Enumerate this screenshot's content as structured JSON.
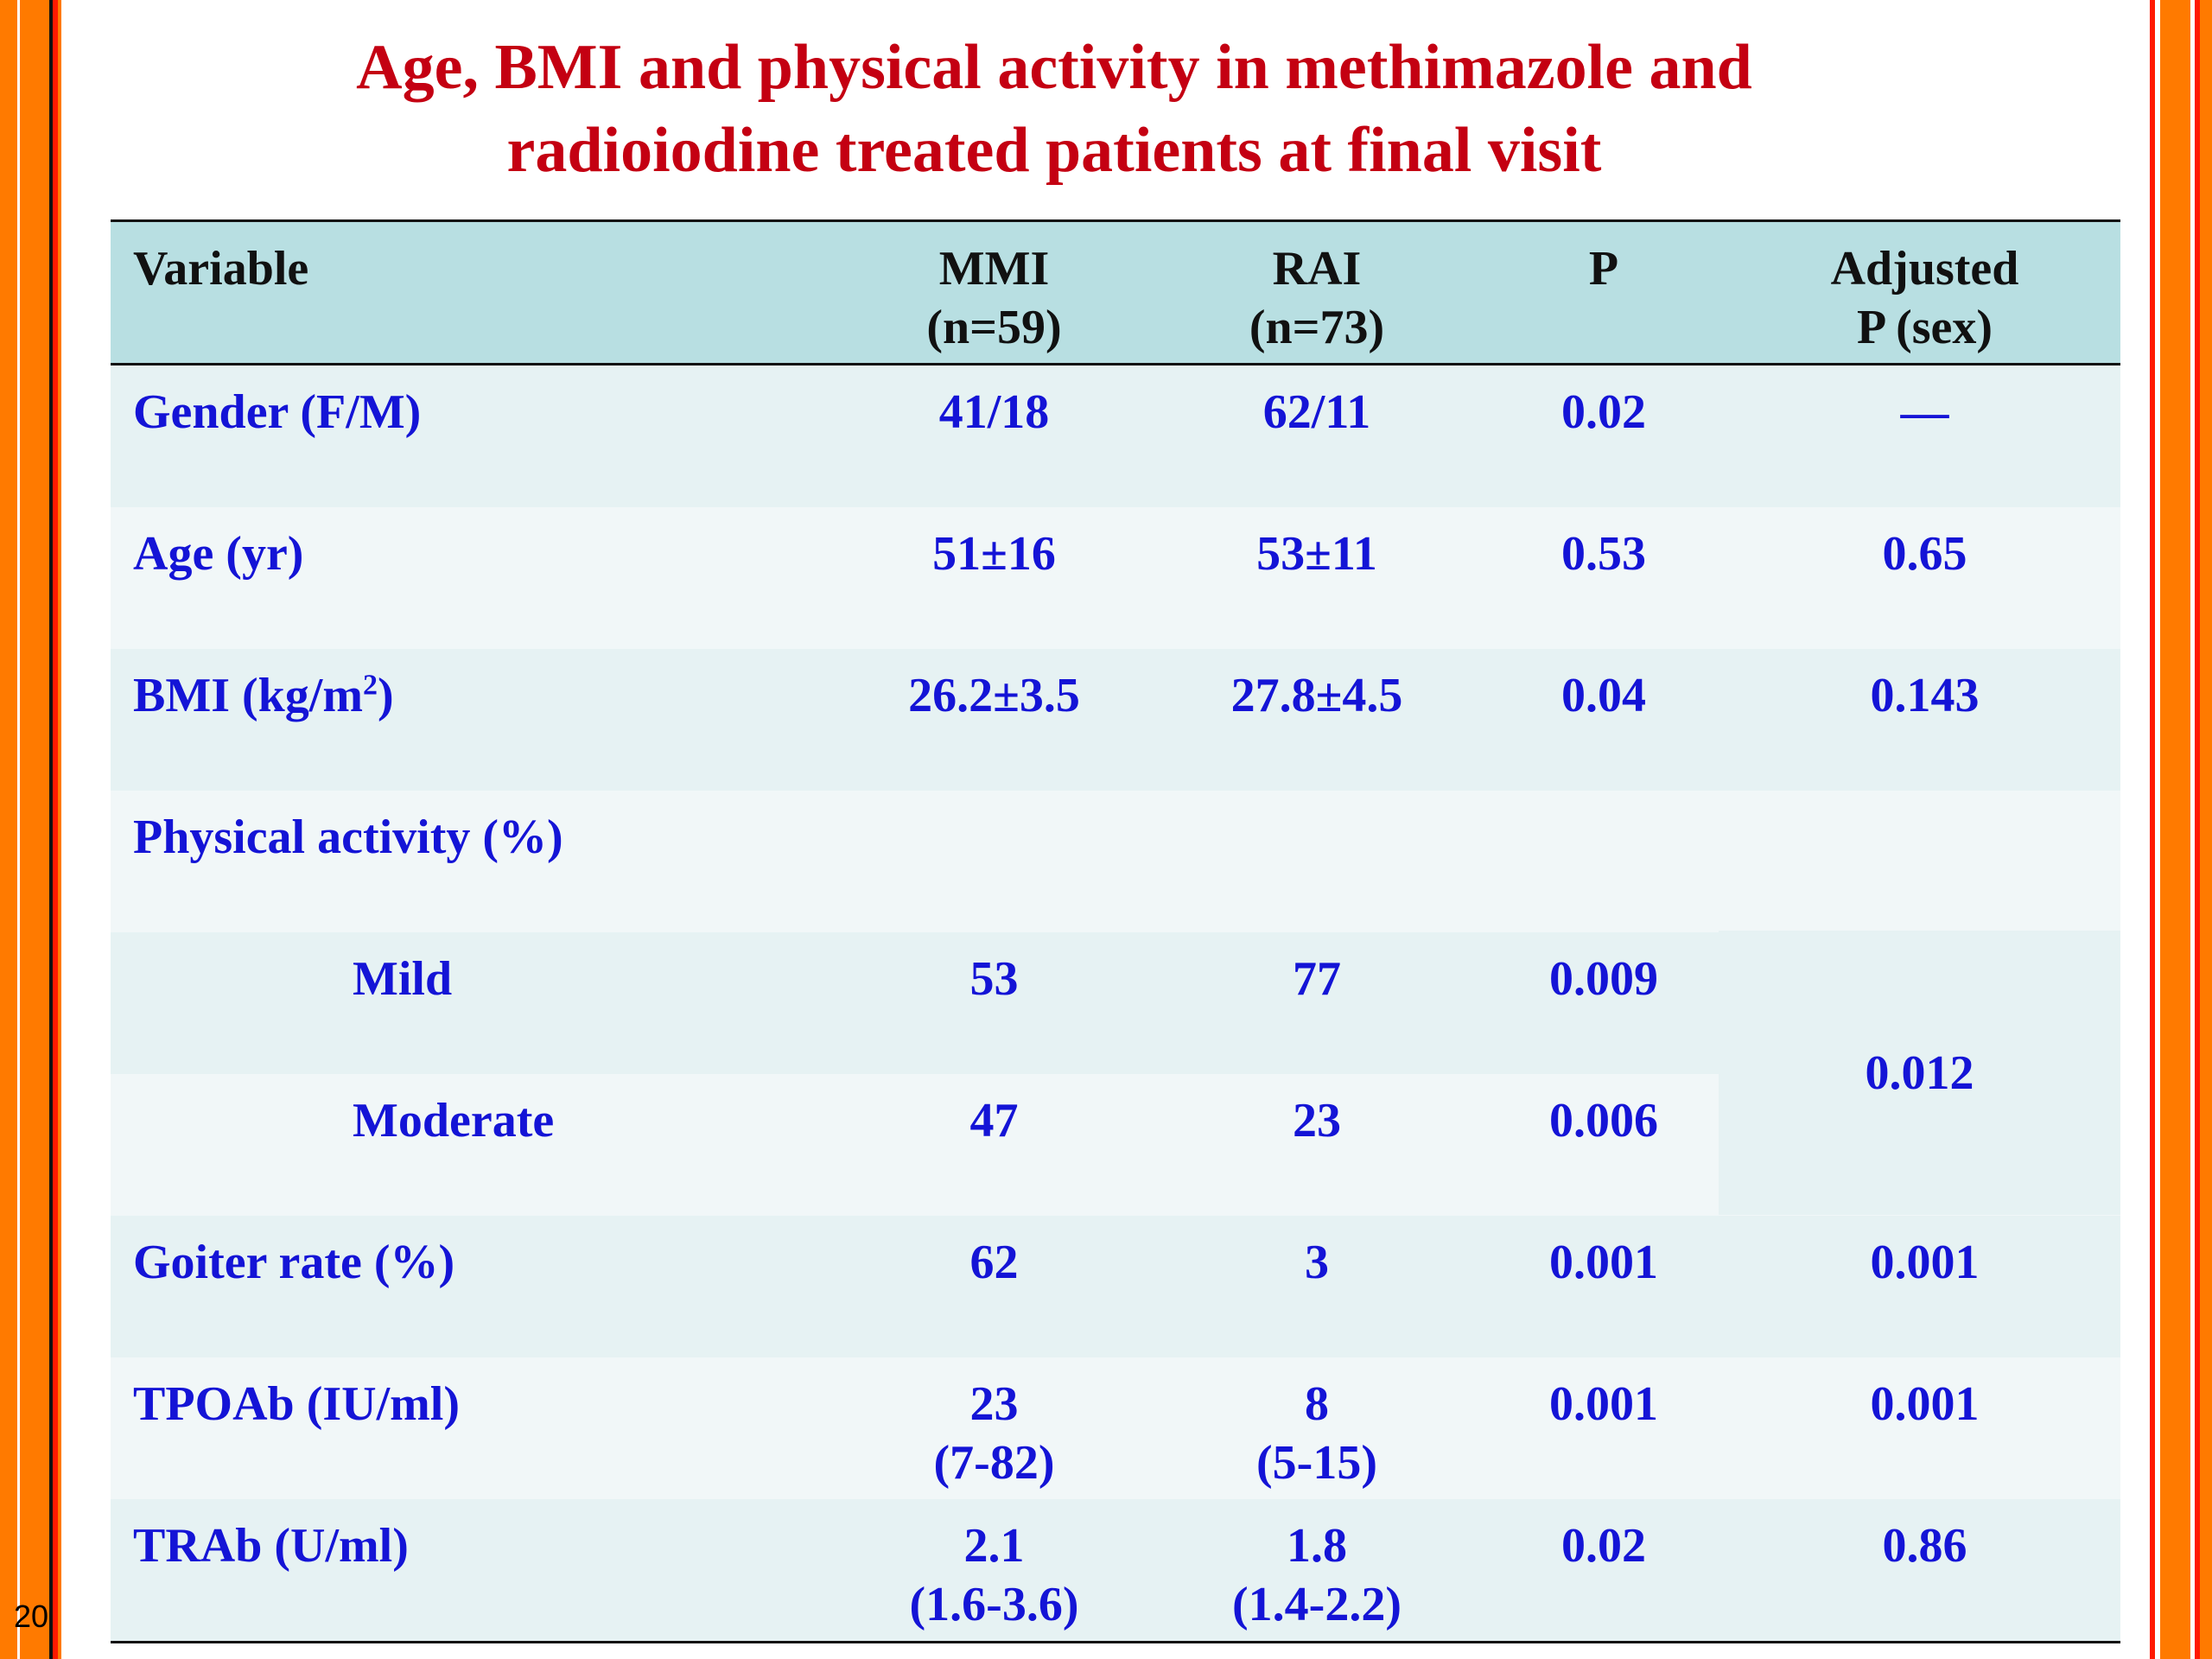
{
  "slide_number": "20",
  "title": {
    "line1": "Age, BMI and physical activity in methimazole and",
    "line2": "radioiodine treated patients at final visit"
  },
  "table": {
    "headers": {
      "variable": "Variable",
      "mmi": "MMI",
      "mmi_n": "(n=59)",
      "rai": "RAI",
      "rai_n": "(n=73)",
      "p": "P",
      "adj": "Adjusted",
      "adj2": "P (sex)"
    },
    "rows": [
      {
        "variable": "Gender (F/M)",
        "mmi": "41/18",
        "rai": "62/11",
        "p": "0.02",
        "adj": "—"
      },
      {
        "variable": "Age (yr)",
        "mmi": "51±16",
        "rai": "53±11",
        "p": "0.53",
        "adj": "0.65"
      },
      {
        "variable": "BMI (kg/m",
        "variable_sup": "2",
        "variable_end": ")",
        "mmi": "26.2±3.5",
        "rai": "27.8±4.5",
        "p": "0.04",
        "adj": "0.143"
      },
      {
        "variable": "Physical activity (%)",
        "mmi": "",
        "rai": "",
        "p": "",
        "adj": ""
      },
      {
        "variable": "Mild",
        "mmi": "53",
        "rai": "77",
        "p": "0.009"
      },
      {
        "variable": "Moderate",
        "mmi": "47",
        "rai": "23",
        "p": "0.006"
      },
      {
        "variable": "Goiter rate (%)",
        "mmi": "62",
        "rai": "3",
        "p": "0.001",
        "adj": "0.001"
      },
      {
        "variable": "TPOAb (IU/ml)",
        "mmi": "23",
        "mmi2": "(7-82)",
        "rai": "8",
        "rai2": "(5-15)",
        "p": "0.001",
        "adj": "0.001"
      },
      {
        "variable": "TRAb (U/ml)",
        "mmi": "2.1",
        "mmi2": "(1.6-3.6)",
        "rai": "1.8",
        "rai2": "(1.4-2.2)",
        "p": "0.02",
        "adj": "0.86"
      }
    ],
    "physical_activity_adjusted_p": "0.012"
  }
}
